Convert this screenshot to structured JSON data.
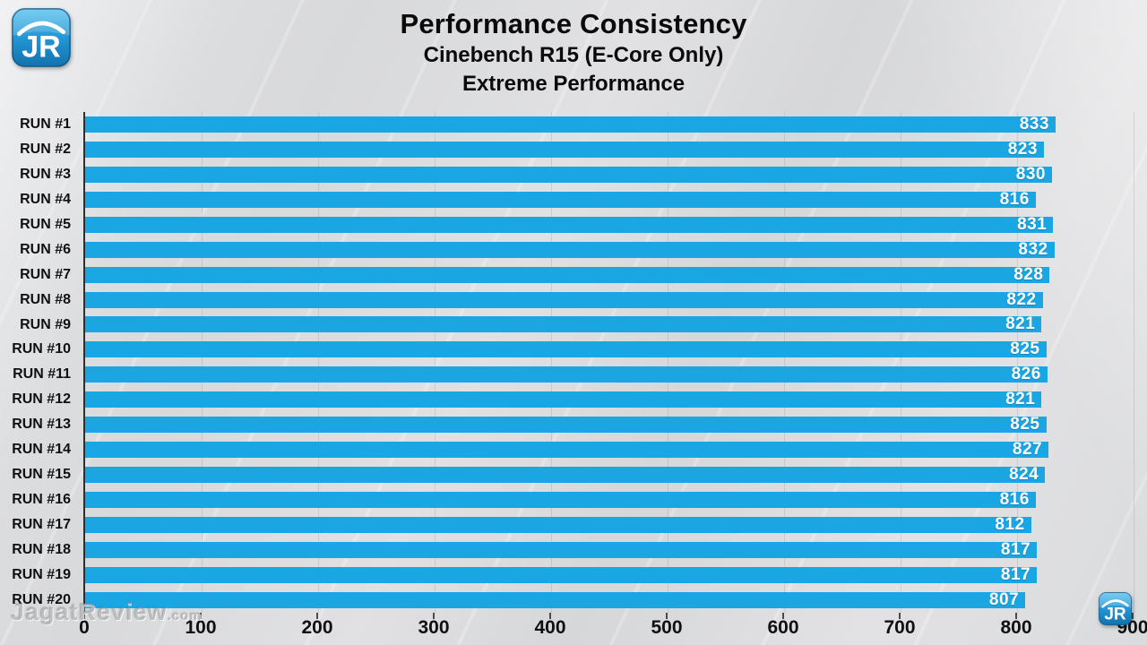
{
  "brand": {
    "logo_text": "JR"
  },
  "title": {
    "line1": "Performance Consistency",
    "line2": "Cinebench R15 (E-Core Only)",
    "line3": "Extreme Performance"
  },
  "watermark": {
    "main": "JagatReview",
    "suffix": ".com"
  },
  "chart_data": {
    "type": "bar",
    "orientation": "horizontal",
    "title": "Performance Consistency",
    "subtitle": "Cinebench R15 (E-Core Only)",
    "subtitle2": "Extreme Performance",
    "categories": [
      "RUN #1",
      "RUN #2",
      "RUN #3",
      "RUN #4",
      "RUN #5",
      "RUN #6",
      "RUN #7",
      "RUN #8",
      "RUN #9",
      "RUN #10",
      "RUN #11",
      "RUN #12",
      "RUN #13",
      "RUN #14",
      "RUN #15",
      "RUN #16",
      "RUN #17",
      "RUN #18",
      "RUN #19",
      "RUN #20"
    ],
    "values": [
      833,
      823,
      830,
      816,
      831,
      832,
      828,
      822,
      821,
      825,
      826,
      821,
      825,
      827,
      824,
      816,
      812,
      817,
      817,
      807
    ],
    "xlim": [
      0,
      900
    ],
    "x_ticks": [
      0,
      100,
      200,
      300,
      400,
      500,
      600,
      700,
      800,
      900
    ],
    "bar_color": "#1aa5e3",
    "value_label_color": "#ffffff",
    "axis_color": "#2e2e2e",
    "grid": "vertical-faint",
    "legend_position": "none"
  }
}
